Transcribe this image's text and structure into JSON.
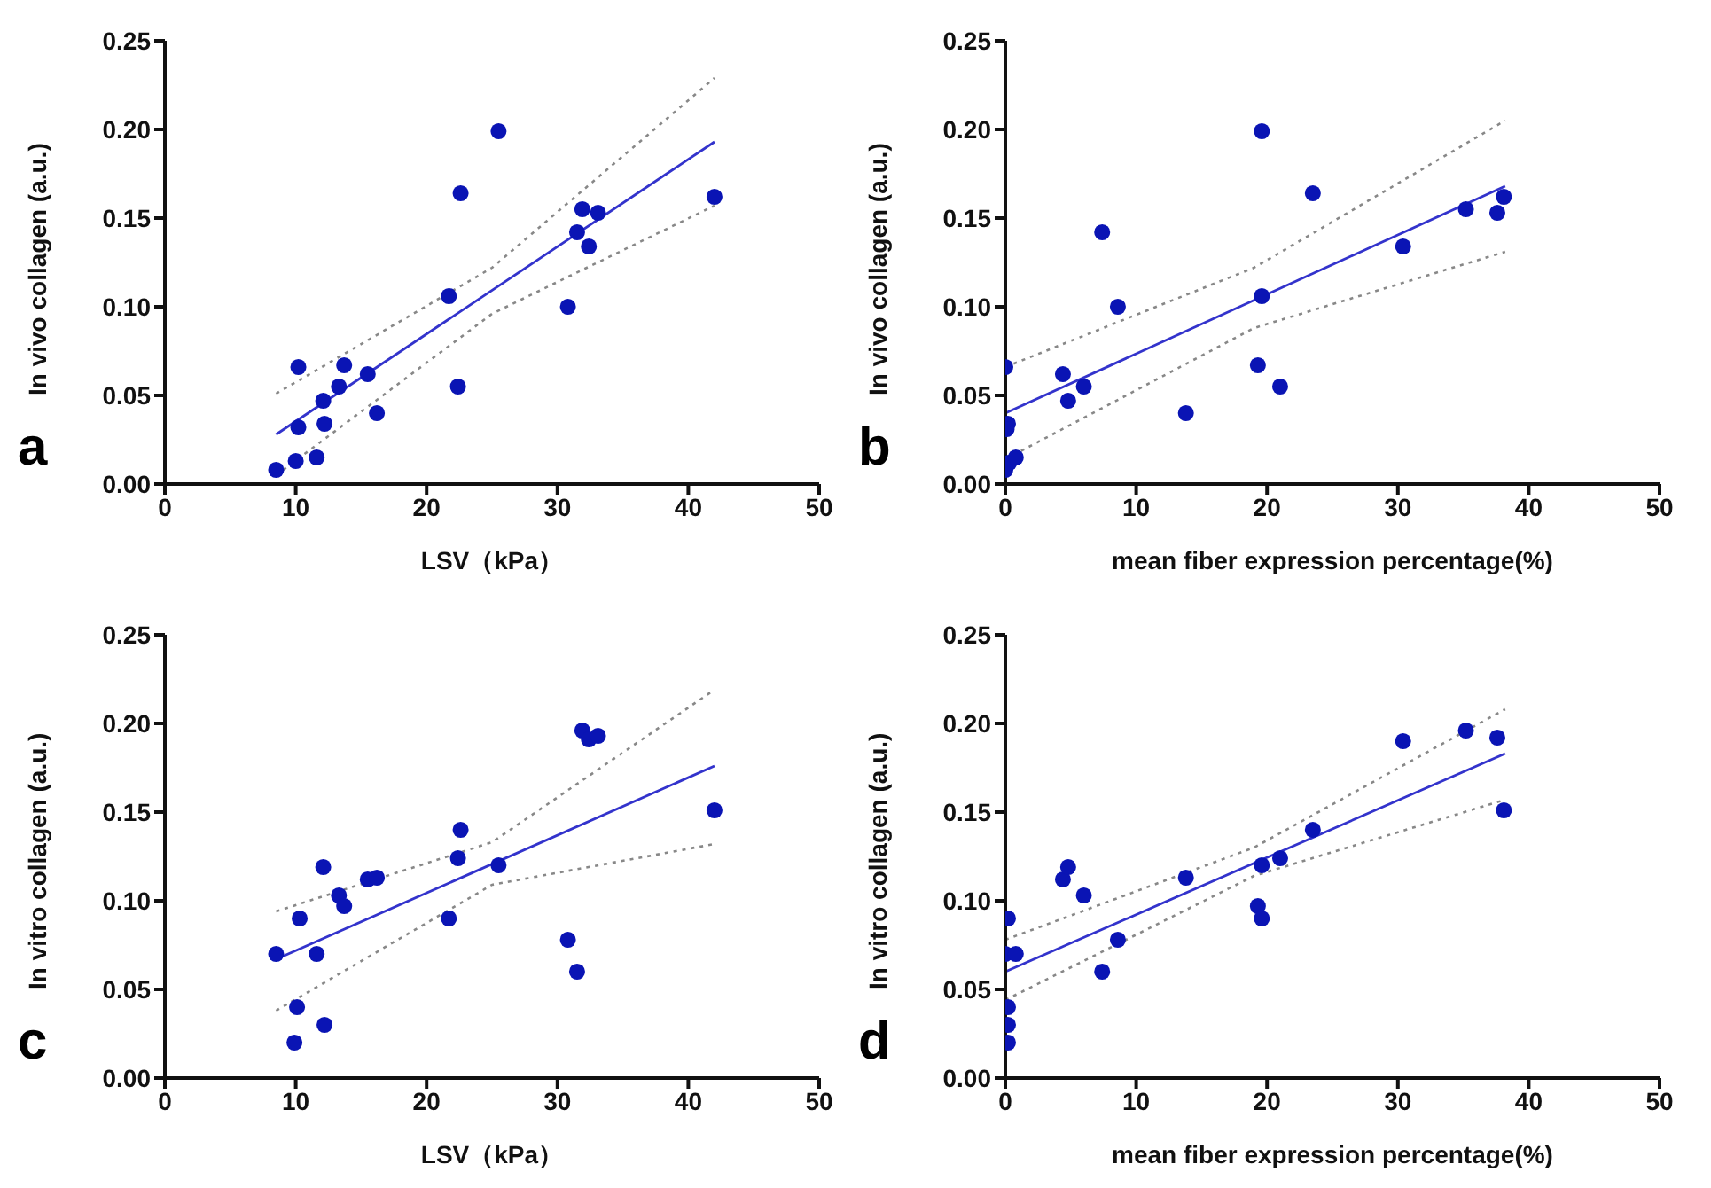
{
  "chart_data": [
    {
      "type": "scatter",
      "title": "a",
      "xlabel": "LSV（kPa）",
      "ylabel": "In vivo collagen (a.u.)",
      "xlim": [
        0,
        50
      ],
      "xticks": [
        0,
        10,
        20,
        30,
        40,
        50
      ],
      "ylim": [
        0,
        0.25
      ],
      "yticks": [
        {
          "value": 0,
          "label": "0.00"
        },
        {
          "value": 0.05,
          "label": "0.05"
        },
        {
          "value": 0.1,
          "label": "0.10"
        },
        {
          "value": 0.15,
          "label": "0.15"
        },
        {
          "value": 0.2,
          "label": "0.20"
        },
        {
          "value": 0.25,
          "label": "0.25"
        }
      ],
      "series": [
        {
          "marker": "circle",
          "color": "#0a14b4",
          "x": [
            8.5,
            10,
            10.2,
            10.2,
            11.6,
            12.1,
            12.2,
            13.3,
            13.7,
            15.5,
            16.2,
            21.7,
            22.4,
            22.6,
            25.5,
            30.8,
            31.5,
            31.9,
            32.4,
            33.1,
            42
          ],
          "values": [
            0.008,
            0.013,
            0.066,
            0.032,
            0.015,
            0.047,
            0.034,
            0.055,
            0.067,
            0.062,
            0.04,
            0.106,
            0.055,
            0.164,
            0.199,
            0.1,
            0.142,
            0.155,
            0.134,
            0.153,
            0.162
          ]
        },
        {
          "type": "line",
          "marker": "none",
          "color": "#3333cc",
          "line_style": "solid",
          "x": [
            8.5,
            42
          ],
          "values": [
            0.028,
            0.193
          ]
        },
        {
          "type": "line",
          "marker": "none",
          "color": "#888888",
          "line_style": "dotted",
          "x": [
            8.5,
            25,
            42
          ],
          "values": [
            0.051,
            0.122,
            0.229
          ]
        },
        {
          "type": "line",
          "marker": "none",
          "color": "#888888",
          "line_style": "dotted",
          "x": [
            8.5,
            25,
            42
          ],
          "values": [
            0.005,
            0.096,
            0.157
          ]
        }
      ]
    },
    {
      "type": "scatter",
      "title": "b",
      "xlabel": "mean fiber expression percentage(%)",
      "ylabel": "In vivo collagen (a.u.)",
      "xlim": [
        0,
        50
      ],
      "xticks": [
        0,
        10,
        20,
        30,
        40,
        50
      ],
      "ylim": [
        0,
        0.25
      ],
      "yticks": [
        {
          "value": 0,
          "label": "0.00"
        },
        {
          "value": 0.05,
          "label": "0.05"
        },
        {
          "value": 0.1,
          "label": "0.10"
        },
        {
          "value": 0.15,
          "label": "0.15"
        },
        {
          "value": 0.2,
          "label": "0.20"
        },
        {
          "value": 0.25,
          "label": "0.25"
        }
      ],
      "series": [
        {
          "marker": "circle",
          "color": "#0a14b4",
          "x": [
            0,
            0.2,
            0.1,
            0,
            0.3,
            0.8,
            4.4,
            4.8,
            6,
            7.4,
            8.6,
            13.8,
            19.3,
            19.6,
            19.6,
            21,
            23.5,
            30.4,
            35.2,
            37.6,
            38.1
          ],
          "values": [
            0.066,
            0.034,
            0.031,
            0.008,
            0.012,
            0.015,
            0.062,
            0.047,
            0.055,
            0.142,
            0.1,
            0.04,
            0.067,
            0.106,
            0.199,
            0.055,
            0.164,
            0.134,
            0.155,
            0.153,
            0.162
          ]
        },
        {
          "type": "line",
          "marker": "none",
          "color": "#3333cc",
          "line_style": "solid",
          "x": [
            0,
            38.2
          ],
          "values": [
            0.04,
            0.168
          ]
        },
        {
          "type": "line",
          "marker": "none",
          "color": "#888888",
          "line_style": "dotted",
          "x": [
            0,
            19,
            38.2
          ],
          "values": [
            0.066,
            0.122,
            0.205
          ]
        },
        {
          "type": "line",
          "marker": "none",
          "color": "#888888",
          "line_style": "dotted",
          "x": [
            0,
            19,
            38.2
          ],
          "values": [
            0.014,
            0.088,
            0.131
          ]
        }
      ]
    },
    {
      "type": "scatter",
      "title": "c",
      "xlabel": "LSV（kPa）",
      "ylabel": "In vitro collagen (a.u.)",
      "xlim": [
        0,
        50
      ],
      "xticks": [
        0,
        10,
        20,
        30,
        40,
        50
      ],
      "ylim": [
        0,
        0.25
      ],
      "yticks": [
        {
          "value": 0,
          "label": "0.00"
        },
        {
          "value": 0.05,
          "label": "0.05"
        },
        {
          "value": 0.1,
          "label": "0.10"
        },
        {
          "value": 0.15,
          "label": "0.15"
        },
        {
          "value": 0.2,
          "label": "0.20"
        },
        {
          "value": 0.25,
          "label": "0.25"
        }
      ],
      "series": [
        {
          "marker": "circle",
          "color": "#0a14b4",
          "x": [
            8.5,
            9.9,
            10.1,
            10.3,
            11.6,
            12.1,
            12.2,
            13.3,
            13.7,
            15.5,
            16.2,
            21.7,
            22.4,
            22.6,
            25.5,
            30.8,
            31.5,
            31.9,
            32.4,
            33.1,
            42
          ],
          "values": [
            0.07,
            0.02,
            0.04,
            0.09,
            0.07,
            0.119,
            0.03,
            0.103,
            0.097,
            0.112,
            0.113,
            0.09,
            0.124,
            0.14,
            0.12,
            0.078,
            0.06,
            0.196,
            0.191,
            0.193,
            0.151
          ]
        },
        {
          "type": "line",
          "marker": "none",
          "color": "#3333cc",
          "line_style": "solid",
          "x": [
            8.5,
            42
          ],
          "values": [
            0.067,
            0.176
          ]
        },
        {
          "type": "line",
          "marker": "none",
          "color": "#888888",
          "line_style": "dotted",
          "x": [
            8.5,
            25,
            42
          ],
          "values": [
            0.094,
            0.133,
            0.219
          ]
        },
        {
          "type": "line",
          "marker": "none",
          "color": "#888888",
          "line_style": "dotted",
          "x": [
            8.5,
            25,
            42
          ],
          "values": [
            0.038,
            0.109,
            0.132
          ]
        }
      ]
    },
    {
      "type": "scatter",
      "title": "d",
      "xlabel": "mean fiber expression percentage(%)",
      "ylabel": "In vitro collagen (a.u.)",
      "xlim": [
        0,
        50
      ],
      "xticks": [
        0,
        10,
        20,
        30,
        40,
        50
      ],
      "ylim": [
        0,
        0.25
      ],
      "yticks": [
        {
          "value": 0,
          "label": "0.00"
        },
        {
          "value": 0.05,
          "label": "0.05"
        },
        {
          "value": 0.1,
          "label": "0.10"
        },
        {
          "value": 0.15,
          "label": "0.15"
        },
        {
          "value": 0.2,
          "label": "0.20"
        },
        {
          "value": 0.25,
          "label": "0.25"
        }
      ],
      "series": [
        {
          "marker": "circle",
          "color": "#0a14b4",
          "x": [
            0.2,
            0,
            0.8,
            0.2,
            0.2,
            0.2,
            4.4,
            4.8,
            6,
            7.4,
            8.6,
            13.8,
            19.3,
            19.6,
            19.6,
            21,
            23.5,
            30.4,
            35.2,
            37.6,
            38.1
          ],
          "values": [
            0.09,
            0.07,
            0.07,
            0.04,
            0.03,
            0.02,
            0.112,
            0.119,
            0.103,
            0.06,
            0.078,
            0.113,
            0.097,
            0.09,
            0.12,
            0.124,
            0.14,
            0.19,
            0.196,
            0.192,
            0.151
          ]
        },
        {
          "type": "line",
          "marker": "none",
          "color": "#3333cc",
          "line_style": "solid",
          "x": [
            0,
            38.2
          ],
          "values": [
            0.06,
            0.183
          ]
        },
        {
          "type": "line",
          "marker": "none",
          "color": "#888888",
          "line_style": "dotted",
          "x": [
            0,
            19,
            38.2
          ],
          "values": [
            0.078,
            0.13,
            0.208
          ]
        },
        {
          "type": "line",
          "marker": "none",
          "color": "#888888",
          "line_style": "dotted",
          "x": [
            0,
            19,
            38.2
          ],
          "values": [
            0.044,
            0.114,
            0.157
          ]
        }
      ]
    }
  ]
}
